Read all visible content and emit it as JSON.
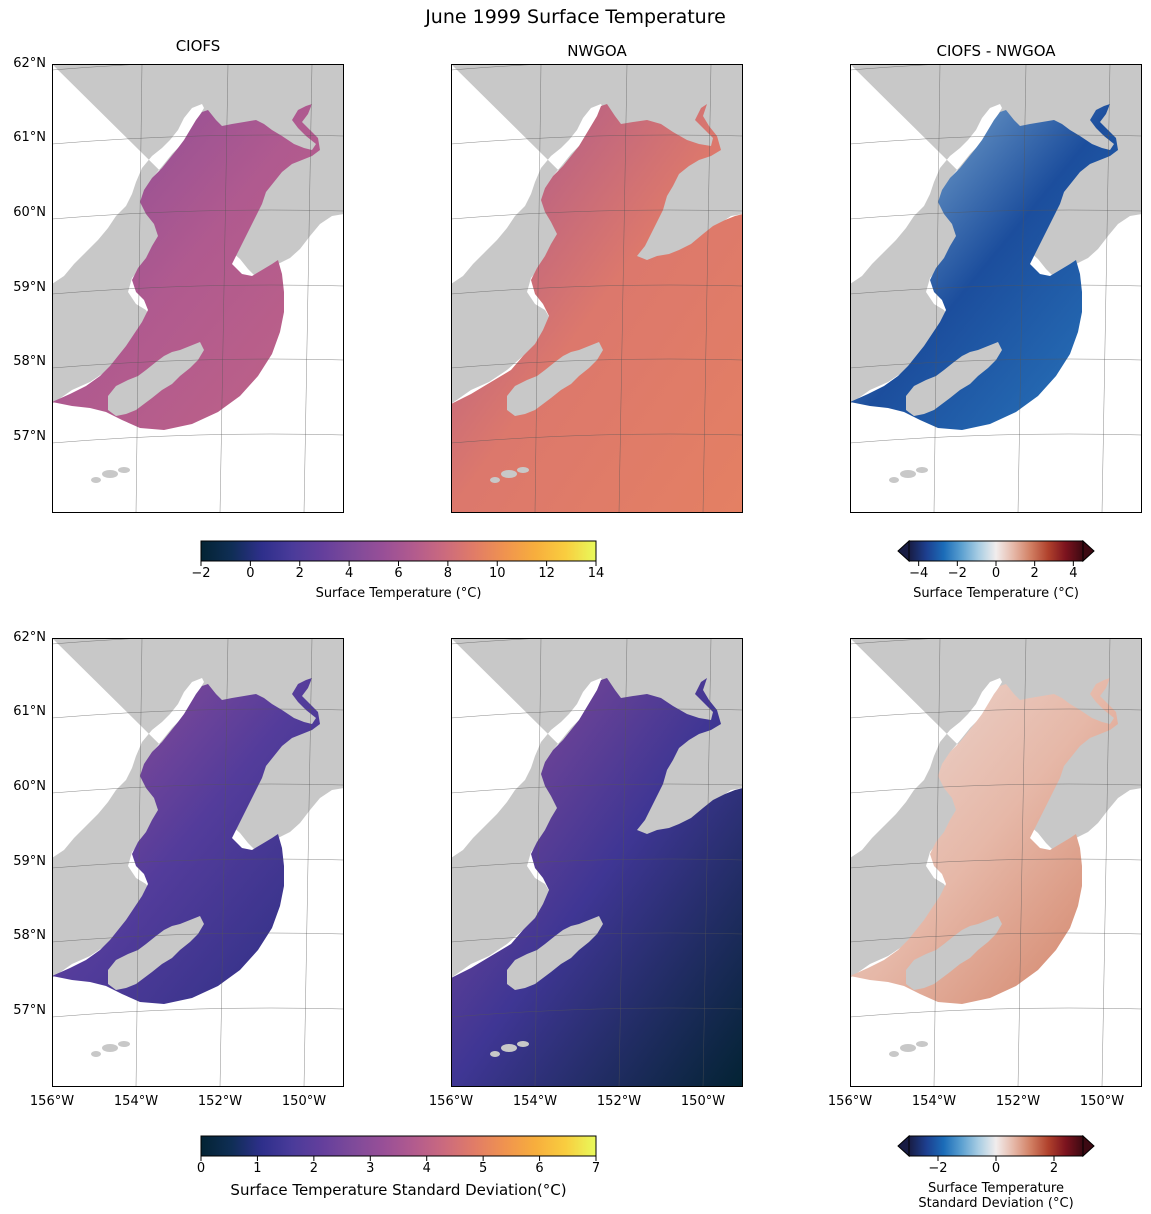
{
  "figure": {
    "title": "June 1999 Surface Temperature",
    "column_titles": [
      "CIOFS",
      "NWGOA",
      "CIOFS - NWGOA"
    ],
    "lat_ticks": [
      "62°N",
      "61°N",
      "60°N",
      "59°N",
      "58°N",
      "57°N"
    ],
    "lon_ticks": [
      "156°W",
      "154°W",
      "152°W",
      "150°W"
    ],
    "colors": {
      "land": "#c8c8c8",
      "water_mask": "#ffffff",
      "grid": "#555555"
    }
  },
  "colorbars": {
    "mean_temp": {
      "label": "Surface Temperature (°C)",
      "ticks": [
        "−2",
        "0",
        "2",
        "4",
        "6",
        "8",
        "10",
        "12",
        "14"
      ],
      "range": [
        -2,
        14
      ],
      "cmap": "thermal"
    },
    "mean_diff": {
      "label": "Surface Temperature (°C)",
      "ticks": [
        "−4",
        "−2",
        "0",
        "2",
        "4"
      ],
      "range": [
        -4.5,
        4.5
      ],
      "cmap": "balance",
      "extend": "both"
    },
    "std_temp": {
      "label": "Surface Temperature Standard Deviation(°C)",
      "ticks": [
        "0",
        "1",
        "2",
        "3",
        "4",
        "5",
        "6",
        "7"
      ],
      "range": [
        0,
        7
      ],
      "cmap": "thermal"
    },
    "std_diff": {
      "label_line1": "Surface Temperature",
      "label_line2": "Standard Deviation (°C)",
      "ticks": [
        "−2",
        "0",
        "2"
      ],
      "range": [
        -3,
        3
      ],
      "cmap": "balance",
      "extend": "both"
    }
  },
  "chart_data": [
    {
      "type": "heatmap",
      "title": "CIOFS",
      "row": "mean",
      "domain": "ciofs",
      "representative_value_c": 6.5,
      "cmap": "thermal",
      "vmin": -2,
      "vmax": 14
    },
    {
      "type": "heatmap",
      "title": "NWGOA",
      "row": "mean",
      "domain": "nwgoa",
      "representative_value_c": 8.8,
      "cmap": "thermal",
      "vmin": -2,
      "vmax": 14
    },
    {
      "type": "heatmap",
      "title": "CIOFS - NWGOA",
      "row": "mean",
      "domain": "ciofs",
      "representative_value_c": -2.5,
      "cmap": "balance",
      "vmin": -4.5,
      "vmax": 4.5
    },
    {
      "type": "heatmap",
      "row": "std",
      "domain": "ciofs",
      "representative_value_c": 1.8,
      "cmap": "thermal",
      "vmin": 0,
      "vmax": 7
    },
    {
      "type": "heatmap",
      "row": "std",
      "domain": "nwgoa",
      "representative_value_c": 0.6,
      "cmap": "thermal",
      "vmin": 0,
      "vmax": 7
    },
    {
      "type": "heatmap",
      "row": "std",
      "domain": "ciofs",
      "representative_value_c": 0.6,
      "cmap": "balance",
      "vmin": -3,
      "vmax": 3
    }
  ]
}
